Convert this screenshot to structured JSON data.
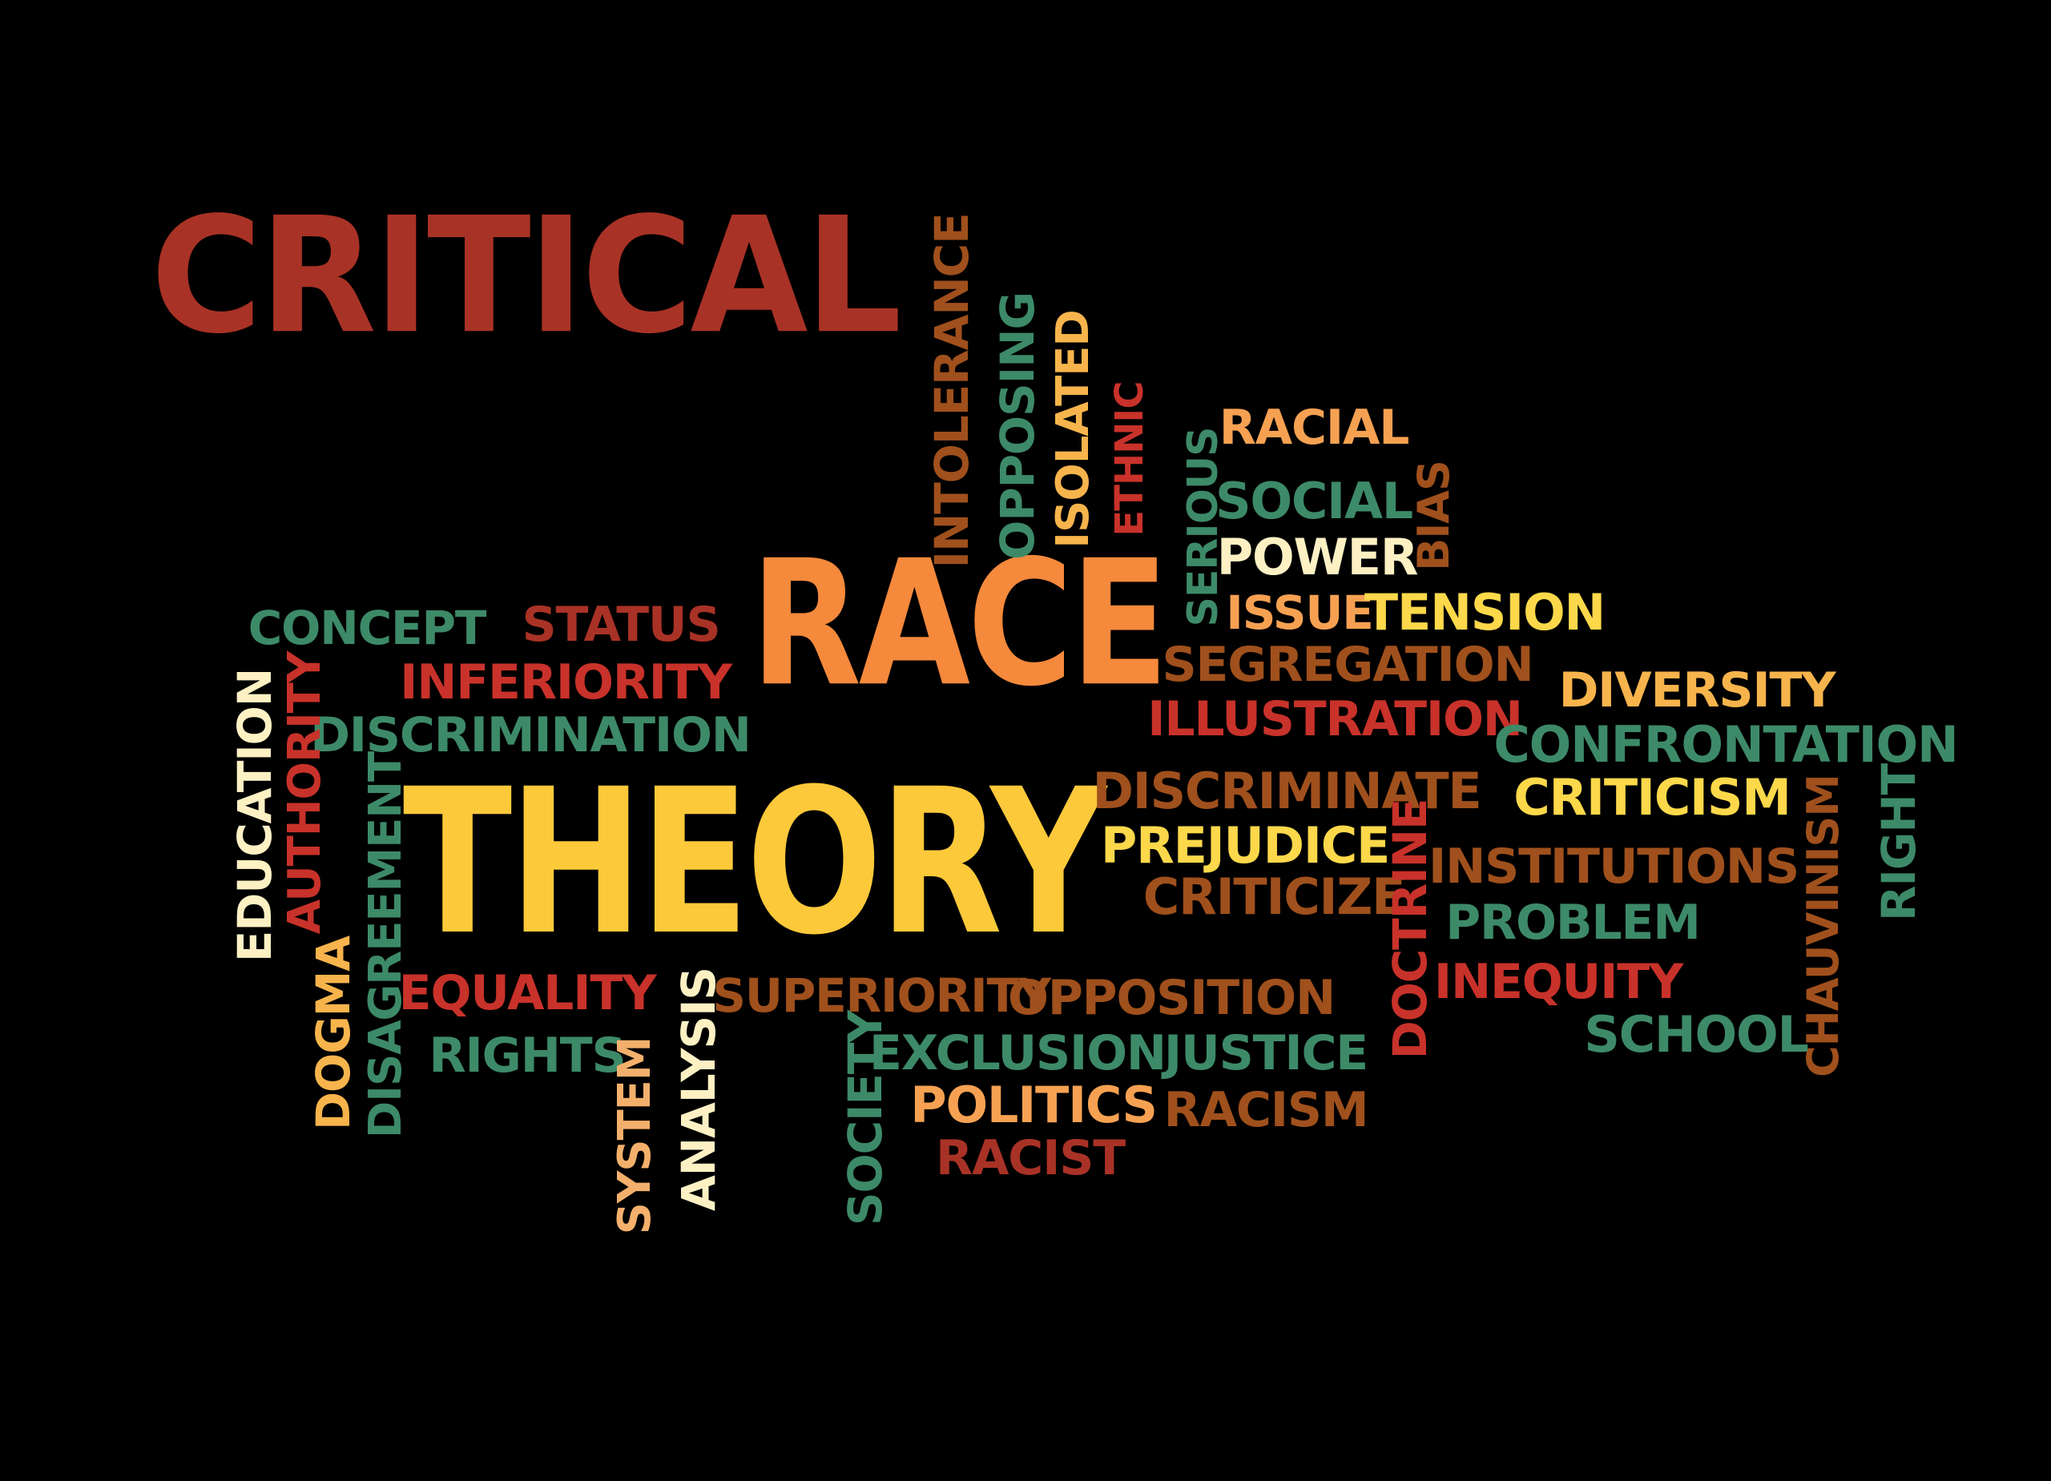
{
  "colors": {
    "background": "#000000",
    "dark_red": "#a93226",
    "orange": "#f5893c",
    "yellow": "#fcc93a",
    "green": "#3d8a68",
    "cream": "#fdf1c4",
    "brown": "#a0501c",
    "peach": "#f3b06c",
    "red": "#c8322a",
    "light_orange": "#f6a152"
  },
  "words": [
    {
      "id": "critical",
      "text": "CRITICAL",
      "color": "#a93226",
      "orientation": "horizontal"
    },
    {
      "id": "race",
      "text": "RACE",
      "color": "#f5893c",
      "orientation": "horizontal"
    },
    {
      "id": "theory",
      "text": "THEORY",
      "color": "#fcc93a",
      "orientation": "horizontal"
    },
    {
      "id": "intolerance",
      "text": "INTOLERANCE",
      "color": "#a0501c",
      "orientation": "vertical"
    },
    {
      "id": "opposing",
      "text": "OPPOSING",
      "color": "#3d8a68",
      "orientation": "vertical"
    },
    {
      "id": "isolated",
      "text": "ISOLATED",
      "color": "#f7b44c",
      "orientation": "vertical"
    },
    {
      "id": "ethnic",
      "text": "ETHNIC",
      "color": "#c8322a",
      "orientation": "vertical"
    },
    {
      "id": "serious",
      "text": "SERIOUS",
      "color": "#3d8a68",
      "orientation": "vertical"
    },
    {
      "id": "racial",
      "text": "RACIAL",
      "color": "#f6a152",
      "orientation": "horizontal"
    },
    {
      "id": "social",
      "text": "SOCIAL",
      "color": "#3d8a68",
      "orientation": "horizontal"
    },
    {
      "id": "power",
      "text": "POWER",
      "color": "#fdf1c4",
      "orientation": "horizontal"
    },
    {
      "id": "bias",
      "text": "BIAS",
      "color": "#a0501c",
      "orientation": "vertical"
    },
    {
      "id": "issue",
      "text": "ISSUE",
      "color": "#f6a152",
      "orientation": "horizontal"
    },
    {
      "id": "tension",
      "text": "TENSION",
      "color": "#fcd84a",
      "orientation": "horizontal"
    },
    {
      "id": "segregation",
      "text": "SEGREGATION",
      "color": "#a0501c",
      "orientation": "horizontal"
    },
    {
      "id": "illustration",
      "text": "ILLUSTRATION",
      "color": "#c8322a",
      "orientation": "horizontal"
    },
    {
      "id": "concept",
      "text": "CONCEPT",
      "color": "#3d8a68",
      "orientation": "horizontal"
    },
    {
      "id": "status",
      "text": "STATUS",
      "color": "#a93226",
      "orientation": "horizontal"
    },
    {
      "id": "inferiority",
      "text": "INFERIORITY",
      "color": "#c8322a",
      "orientation": "horizontal"
    },
    {
      "id": "discrimination",
      "text": "DISCRIMINATION",
      "color": "#3d8a68",
      "orientation": "horizontal"
    },
    {
      "id": "authority",
      "text": "AUTHORITY",
      "color": "#c8322a",
      "orientation": "vertical"
    },
    {
      "id": "education",
      "text": "EDUCATION",
      "color": "#fdf1c4",
      "orientation": "vertical"
    },
    {
      "id": "disagreement",
      "text": "DISAGREEMENT",
      "color": "#3d8a68",
      "orientation": "vertical"
    },
    {
      "id": "dogma",
      "text": "DOGMA",
      "color": "#f7b44c",
      "orientation": "vertical"
    },
    {
      "id": "equality",
      "text": "EQUALITY",
      "color": "#c8322a",
      "orientation": "horizontal"
    },
    {
      "id": "rights",
      "text": "RIGHTS",
      "color": "#3d8a68",
      "orientation": "horizontal"
    },
    {
      "id": "system",
      "text": "SYSTEM",
      "color": "#f3b06c",
      "orientation": "vertical"
    },
    {
      "id": "analysis",
      "text": "ANALYSIS",
      "color": "#fdf1c4",
      "orientation": "vertical"
    },
    {
      "id": "superiority",
      "text": "SUPERIORITY",
      "color": "#a0501c",
      "orientation": "horizontal"
    },
    {
      "id": "society",
      "text": "SOCIETY",
      "color": "#3d8a68",
      "orientation": "vertical"
    },
    {
      "id": "exclusion",
      "text": "EXCLUSION",
      "color": "#3d8a68",
      "orientation": "horizontal"
    },
    {
      "id": "opposition",
      "text": "OPPOSITION",
      "color": "#a0501c",
      "orientation": "horizontal"
    },
    {
      "id": "politics",
      "text": "POLITICS",
      "color": "#f6a152",
      "orientation": "horizontal"
    },
    {
      "id": "racist",
      "text": "RACIST",
      "color": "#a93226",
      "orientation": "horizontal"
    },
    {
      "id": "justice",
      "text": "JUSTICE",
      "color": "#3d8a68",
      "orientation": "horizontal"
    },
    {
      "id": "racism",
      "text": "RACISM",
      "color": "#a0501c",
      "orientation": "horizontal"
    },
    {
      "id": "discriminate",
      "text": "DISCRIMINATE",
      "color": "#a0501c",
      "orientation": "horizontal"
    },
    {
      "id": "prejudice",
      "text": "PREJUDICE",
      "color": "#fcd84a",
      "orientation": "horizontal"
    },
    {
      "id": "criticize",
      "text": "CRITICIZE",
      "color": "#a0501c",
      "orientation": "horizontal"
    },
    {
      "id": "doctrine",
      "text": "DOCTRINE",
      "color": "#c8322a",
      "orientation": "vertical"
    },
    {
      "id": "diversity",
      "text": "DIVERSITY",
      "color": "#f7b44c",
      "orientation": "horizontal"
    },
    {
      "id": "confrontation",
      "text": "CONFRONTATION",
      "color": "#3d8a68",
      "orientation": "horizontal"
    },
    {
      "id": "criticism",
      "text": "CRITICISM",
      "color": "#fcd84a",
      "orientation": "horizontal"
    },
    {
      "id": "institutions",
      "text": "INSTITUTIONS",
      "color": "#a0501c",
      "orientation": "horizontal"
    },
    {
      "id": "problem",
      "text": "PROBLEM",
      "color": "#3d8a68",
      "orientation": "horizontal"
    },
    {
      "id": "inequity",
      "text": "INEQUITY",
      "color": "#c8322a",
      "orientation": "horizontal"
    },
    {
      "id": "school",
      "text": "SCHOOL",
      "color": "#3d8a68",
      "orientation": "horizontal"
    },
    {
      "id": "chauvinism",
      "text": "CHAUVINISM",
      "color": "#a0501c",
      "orientation": "vertical"
    },
    {
      "id": "right",
      "text": "RIGHT",
      "color": "#3d8a68",
      "orientation": "vertical"
    }
  ]
}
